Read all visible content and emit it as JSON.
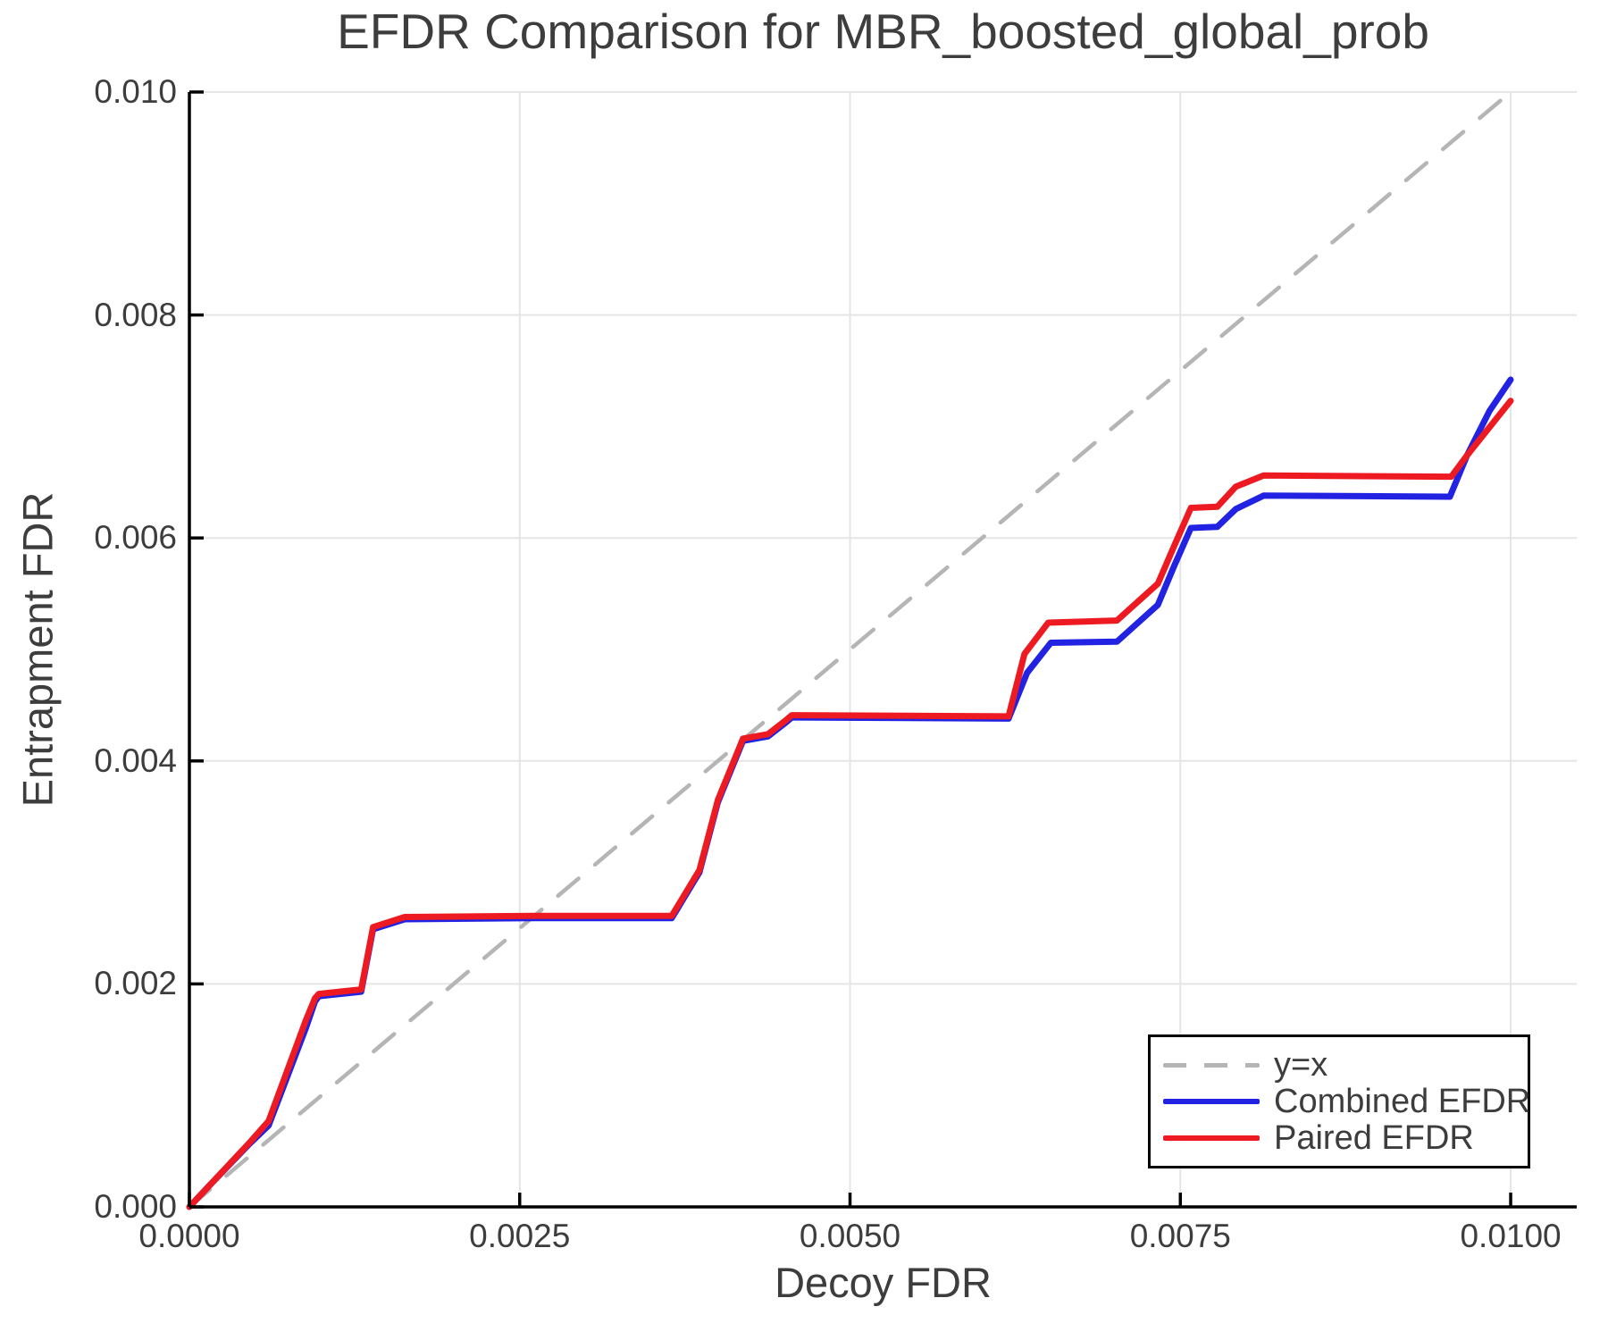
{
  "title": "EFDR Comparison for MBR_boosted_global_prob",
  "axes": {
    "x": {
      "label": "Decoy FDR",
      "range": [
        0,
        0.0105
      ],
      "tick_values": [
        0,
        0.0025,
        0.005,
        0.0075,
        0.01
      ],
      "tick_labels": [
        "0.0000",
        "0.0025",
        "0.0050",
        "0.0075",
        "0.0100"
      ]
    },
    "y": {
      "label": "Entrapment FDR",
      "range": [
        0,
        0.01
      ],
      "tick_values": [
        0,
        0.002,
        0.004,
        0.006,
        0.008,
        0.01
      ],
      "tick_labels": [
        "0.000",
        "0.002",
        "0.004",
        "0.006",
        "0.008",
        "0.010"
      ]
    }
  },
  "style": {
    "grid_color": "#e5e5e5",
    "spine_color": "#000000",
    "text_color": "#3d3d3d",
    "background": "#ffffff",
    "line_width": 7,
    "dashed_width": 4.5
  },
  "legend": {
    "position": "bottom-right",
    "entries": [
      {
        "label": "y=x",
        "style": "dashed",
        "color": "#b5b5b5"
      },
      {
        "label": "Combined EFDR",
        "style": "solid",
        "color": "#2222e2"
      },
      {
        "label": "Paired EFDR",
        "style": "solid",
        "color": "#ee1a22"
      }
    ]
  },
  "chart_data": {
    "type": "line",
    "title": "EFDR Comparison for MBR_boosted_global_prob",
    "xlabel": "Decoy FDR",
    "ylabel": "Entrapment FDR",
    "xlim": [
      0,
      0.0105
    ],
    "ylim": [
      0,
      0.01
    ],
    "grid": true,
    "legend_position": "bottom-right",
    "series": [
      {
        "name": "y=x",
        "style": "dashed",
        "color": "#b5b5b5",
        "points": [
          [
            0,
            0
          ],
          [
            0.01,
            0.01
          ]
        ]
      },
      {
        "name": "Combined EFDR",
        "style": "solid",
        "color": "#2222e2",
        "points": [
          [
            0,
            0
          ],
          [
            0.00015,
            0.00019
          ],
          [
            0.00045,
            0.00056
          ],
          [
            0.0006,
            0.00073
          ],
          [
            0.00088,
            0.0016
          ],
          [
            0.00095,
            0.00184
          ],
          [
            0.00098,
            0.00189
          ],
          [
            0.0013,
            0.00193
          ],
          [
            0.00139,
            0.00249
          ],
          [
            0.00163,
            0.00258
          ],
          [
            0.0026,
            0.00259
          ],
          [
            0.00365,
            0.00259
          ],
          [
            0.00386,
            0.003
          ],
          [
            0.004,
            0.00363
          ],
          [
            0.00419,
            0.00418
          ],
          [
            0.00438,
            0.00422
          ],
          [
            0.00452,
            0.00435
          ],
          [
            0.00456,
            0.00439
          ],
          [
            0.0062,
            0.00438
          ],
          [
            0.00634,
            0.00479
          ],
          [
            0.00652,
            0.00506
          ],
          [
            0.00702,
            0.00507
          ],
          [
            0.00733,
            0.0054
          ],
          [
            0.00745,
            0.00574
          ],
          [
            0.00758,
            0.00609
          ],
          [
            0.00778,
            0.0061
          ],
          [
            0.00792,
            0.00626
          ],
          [
            0.00813,
            0.00638
          ],
          [
            0.00954,
            0.00637
          ],
          [
            0.00967,
            0.00674
          ],
          [
            0.00984,
            0.00714
          ],
          [
            0.01,
            0.00742
          ]
        ]
      },
      {
        "name": "Paired EFDR",
        "style": "solid",
        "color": "#ee1a22",
        "points": [
          [
            0,
            0
          ],
          [
            0.00015,
            0.00019
          ],
          [
            0.00045,
            0.00057
          ],
          [
            0.0006,
            0.00077
          ],
          [
            0.00088,
            0.00167
          ],
          [
            0.00095,
            0.00187
          ],
          [
            0.00098,
            0.00191
          ],
          [
            0.0013,
            0.00195
          ],
          [
            0.00139,
            0.00251
          ],
          [
            0.00163,
            0.0026
          ],
          [
            0.0026,
            0.00261
          ],
          [
            0.00365,
            0.00261
          ],
          [
            0.00386,
            0.00302
          ],
          [
            0.004,
            0.00365
          ],
          [
            0.00419,
            0.0042
          ],
          [
            0.00438,
            0.00424
          ],
          [
            0.00452,
            0.00437
          ],
          [
            0.00456,
            0.00441
          ],
          [
            0.0062,
            0.0044
          ],
          [
            0.00632,
            0.00496
          ],
          [
            0.0065,
            0.00524
          ],
          [
            0.00702,
            0.00526
          ],
          [
            0.00733,
            0.00559
          ],
          [
            0.00745,
            0.00592
          ],
          [
            0.00758,
            0.00627
          ],
          [
            0.00778,
            0.00628
          ],
          [
            0.00792,
            0.00646
          ],
          [
            0.00813,
            0.00656
          ],
          [
            0.00955,
            0.00655
          ],
          [
            0.00967,
            0.00674
          ],
          [
            0.01,
            0.00723
          ]
        ]
      }
    ]
  }
}
